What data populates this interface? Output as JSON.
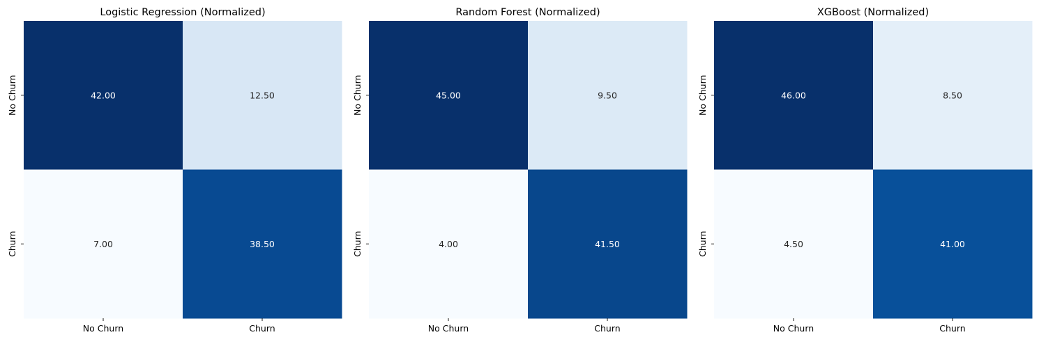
{
  "chart_data": [
    {
      "type": "heatmap",
      "title": "Logistic Regression (Normalized)",
      "rows": [
        "No Churn",
        "Churn"
      ],
      "columns": [
        "No Churn",
        "Churn"
      ],
      "values": [
        [
          42.0,
          12.5
        ],
        [
          7.0,
          38.5
        ]
      ],
      "value_labels": [
        [
          "42.00",
          "12.50"
        ],
        [
          "7.00",
          "38.50"
        ]
      ],
      "colormap": "Blues",
      "colorbar": false,
      "xlabel": "",
      "ylabel": ""
    },
    {
      "type": "heatmap",
      "title": "Random Forest (Normalized)",
      "rows": [
        "No Churn",
        "Churn"
      ],
      "columns": [
        "No Churn",
        "Churn"
      ],
      "values": [
        [
          45.0,
          9.5
        ],
        [
          4.0,
          41.5
        ]
      ],
      "value_labels": [
        [
          "45.00",
          "9.50"
        ],
        [
          "4.00",
          "41.50"
        ]
      ],
      "colormap": "Blues",
      "colorbar": false,
      "xlabel": "",
      "ylabel": ""
    },
    {
      "type": "heatmap",
      "title": "XGBoost (Normalized)",
      "rows": [
        "No Churn",
        "Churn"
      ],
      "columns": [
        "No Churn",
        "Churn"
      ],
      "values": [
        [
          46.0,
          8.5
        ],
        [
          4.5,
          41.0
        ]
      ],
      "value_labels": [
        [
          "46.00",
          "8.50"
        ],
        [
          "4.50",
          "41.00"
        ]
      ],
      "colormap": "Blues",
      "colorbar": false,
      "xlabel": "",
      "ylabel": ""
    }
  ]
}
